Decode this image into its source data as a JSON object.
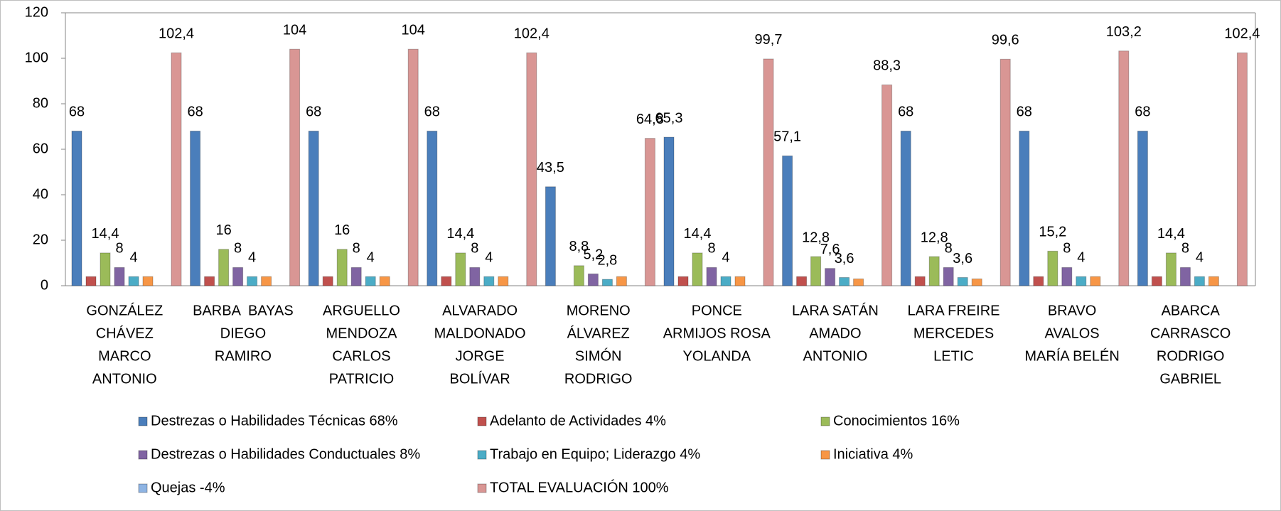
{
  "chart_data": {
    "type": "bar",
    "categories": [
      [
        "GONZÁLEZ",
        "CHÁVEZ",
        "MARCO",
        "ANTONIO"
      ],
      [
        "BARBA  BAYAS",
        "DIEGO",
        "RAMIRO"
      ],
      [
        "ARGUELLO",
        "MENDOZA",
        "CARLOS",
        "PATRICIO"
      ],
      [
        "ALVARADO",
        "MALDONADO",
        "JORGE",
        "BOLÍVAR"
      ],
      [
        "MORENO",
        "ÁLVAREZ",
        "SIMÓN",
        "RODRIGO"
      ],
      [
        "PONCE",
        "ARMIJOS ROSA",
        "YOLANDA"
      ],
      [
        "LARA SATÁN",
        "AMADO",
        "ANTONIO"
      ],
      [
        "LARA FREIRE",
        "MERCEDES",
        "LETIC"
      ],
      [
        "BRAVO",
        "AVALOS",
        "MARÍA BELÉN"
      ],
      [
        "ABARCA",
        "CARRASCO",
        "RODRIGO",
        "GABRIEL"
      ]
    ],
    "series": [
      {
        "name": "Destrezas o Habilidades Técnicas 68%",
        "color": "#4a7ebb",
        "values": [
          68,
          68,
          68,
          68,
          43.5,
          65.3,
          57.1,
          68,
          68,
          68
        ],
        "value_labels": [
          "68",
          "68",
          "68",
          "68",
          "43,5",
          "65,3",
          "57,1",
          "68",
          "68",
          "68"
        ]
      },
      {
        "name": "Adelanto de Actividades 4%",
        "color": "#c0504d",
        "values": [
          4,
          4,
          4,
          4,
          null,
          4,
          4,
          4,
          4,
          4
        ]
      },
      {
        "name": "Conocimientos 16%",
        "color": "#9bbb59",
        "values": [
          14.4,
          16,
          16,
          14.4,
          8.8,
          14.4,
          12.8,
          12.8,
          15.2,
          14.4
        ],
        "value_labels": [
          "14,4",
          "16",
          "16",
          "14,4",
          "8,8",
          "14,4",
          "12,8",
          "12,8",
          "15,2",
          "14,4"
        ]
      },
      {
        "name": "Destrezas o Habilidades Conductuales 8%",
        "color": "#8064a2",
        "values": [
          8,
          8,
          8,
          8,
          5.2,
          8,
          7.6,
          8,
          8,
          8
        ],
        "value_labels": [
          "8",
          "8",
          "8",
          "8",
          "5,2",
          "8",
          "7,6",
          "8",
          "8",
          "8"
        ]
      },
      {
        "name": "Trabajo en Equipo; Liderazgo 4%",
        "color": "#4bacc6",
        "values": [
          4,
          4,
          4,
          4,
          2.8,
          4,
          3.6,
          3.6,
          4,
          4
        ],
        "value_labels": [
          "4",
          "4",
          "4",
          "4",
          "2,8",
          "4",
          "3,6",
          "3,6",
          "4",
          "4"
        ]
      },
      {
        "name": "Iniciativa 4%",
        "color": "#f79646",
        "values": [
          4,
          4,
          4,
          4,
          4,
          4,
          3,
          3,
          4,
          4
        ]
      },
      {
        "name": "Quejas -4%",
        "color": "#8eb4e3",
        "values": [
          null,
          null,
          null,
          null,
          null,
          null,
          null,
          null,
          null,
          null
        ]
      },
      {
        "name": "TOTAL EVALUACIÓN 100%",
        "color": "#d99694",
        "values": [
          102.4,
          104,
          104,
          102.4,
          64.8,
          99.7,
          88.3,
          99.6,
          103.2,
          102.4
        ],
        "value_labels": [
          "102,4",
          "104",
          "104",
          "102,4",
          "64,8",
          "99,7",
          "88,3",
          "99,6",
          "103,2",
          "102,4"
        ]
      }
    ],
    "ylim": [
      0,
      120
    ],
    "yticks": [
      0,
      20,
      40,
      60,
      80,
      100,
      120
    ],
    "grid": false
  }
}
